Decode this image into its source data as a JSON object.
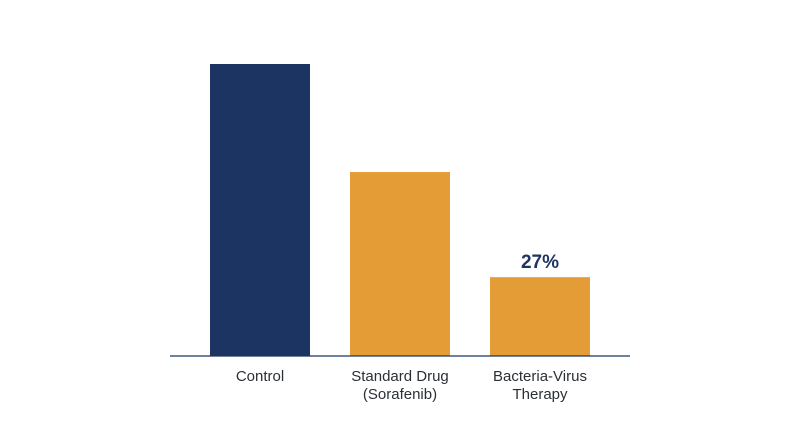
{
  "chart_data": {
    "type": "bar",
    "categories": [
      "Control",
      "Standard Drug\n(Sorafenib)",
      "Bacteria-Virus\nTherapy"
    ],
    "values": [
      100,
      63,
      27
    ],
    "data_labels": [
      "",
      "",
      "27%"
    ],
    "colors": [
      "#1c3461",
      "#e39c36",
      "#e39c36"
    ],
    "title": "",
    "xlabel": "",
    "ylabel": "",
    "ylim": [
      0,
      100
    ],
    "grid": false,
    "legend": "none"
  },
  "colors": {
    "axis": "#1c3461",
    "label_text": "#2b2f36",
    "data_label_text": "#1f3460"
  }
}
